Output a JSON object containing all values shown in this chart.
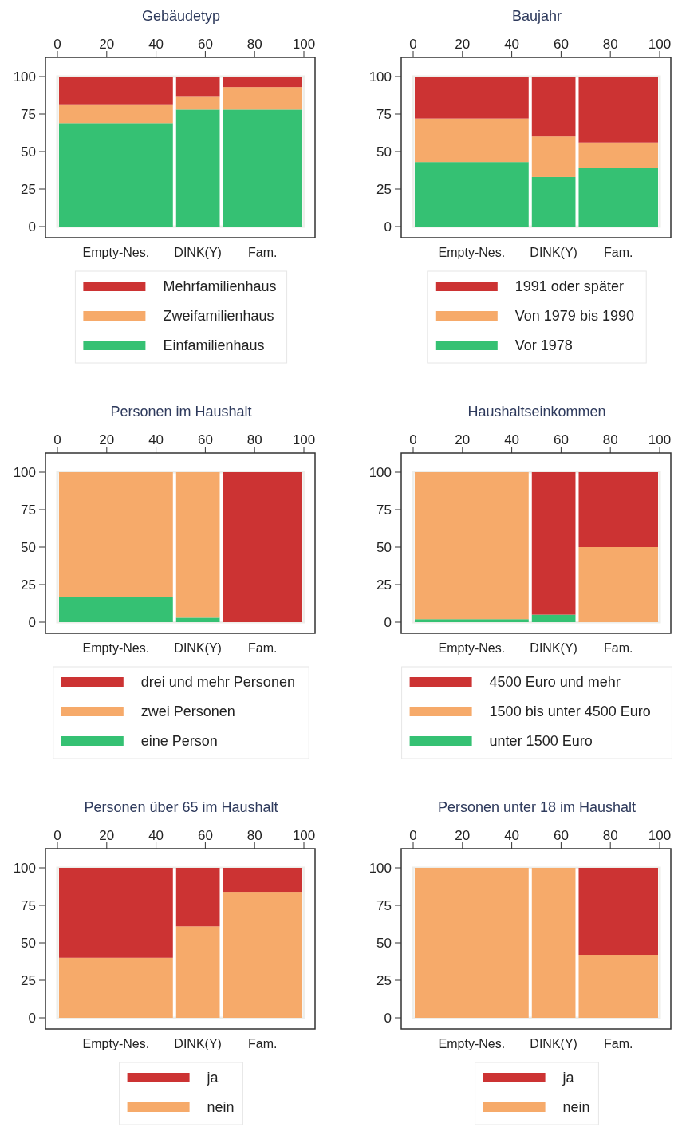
{
  "chart_data": [
    {
      "type": "bar",
      "stacked": true,
      "title": "Gebäudetyp",
      "x": [
        23.75,
        57,
        83.25
      ],
      "xlim": [
        0,
        100
      ],
      "xticks": [
        0,
        20,
        40,
        60,
        80,
        100
      ],
      "ylim": [
        0,
        100
      ],
      "yticks": [
        0,
        25,
        50,
        75,
        100
      ],
      "legend": "bottom",
      "annotations": [
        "Empty-Nes.",
        "DINK(Y)",
        "Fam."
      ],
      "series": [
        {
          "name": "Einfamilienhaus",
          "color": "#35c173",
          "values": [
            69,
            78,
            78
          ]
        },
        {
          "name": "Zweifamilienhaus",
          "color": "#f6aa6a",
          "values": [
            12,
            9,
            15
          ]
        },
        {
          "name": "Mehrfamilienhaus",
          "color": "#cc3333",
          "values": [
            19,
            13,
            7
          ]
        }
      ]
    },
    {
      "type": "bar",
      "stacked": true,
      "title": "Baujahr",
      "x": [
        23.75,
        57,
        83.25
      ],
      "xlim": [
        0,
        100
      ],
      "xticks": [
        0,
        20,
        40,
        60,
        80,
        100
      ],
      "ylim": [
        0,
        100
      ],
      "yticks": [
        0,
        25,
        50,
        75,
        100
      ],
      "legend": "bottom",
      "annotations": [
        "Empty-Nes.",
        "DINK(Y)",
        "Fam."
      ],
      "series": [
        {
          "name": "Vor 1978",
          "color": "#35c173",
          "values": [
            43,
            33,
            39
          ]
        },
        {
          "name": "Von 1979 bis 1990",
          "color": "#f6aa6a",
          "values": [
            29,
            27,
            17
          ]
        },
        {
          "name": "1991 oder später",
          "color": "#cc3333",
          "values": [
            28,
            40,
            44
          ]
        }
      ]
    },
    {
      "type": "bar",
      "stacked": true,
      "title": "Personen im Haushalt",
      "x": [
        23.75,
        57,
        83.25
      ],
      "xlim": [
        0,
        100
      ],
      "xticks": [
        0,
        20,
        40,
        60,
        80,
        100
      ],
      "ylim": [
        0,
        100
      ],
      "yticks": [
        0,
        25,
        50,
        75,
        100
      ],
      "legend": "bottom",
      "annotations": [
        "Empty-Nes.",
        "DINK(Y)",
        "Fam."
      ],
      "series": [
        {
          "name": "eine Person",
          "color": "#35c173",
          "values": [
            17,
            3,
            0
          ]
        },
        {
          "name": "zwei Personen",
          "color": "#f6aa6a",
          "values": [
            83,
            97,
            0
          ]
        },
        {
          "name": "drei und mehr Personen",
          "color": "#cc3333",
          "values": [
            0,
            0,
            100
          ]
        }
      ]
    },
    {
      "type": "bar",
      "stacked": true,
      "title": "Haushaltseinkommen",
      "x": [
        23.75,
        57,
        83.25
      ],
      "xlim": [
        0,
        100
      ],
      "xticks": [
        0,
        20,
        40,
        60,
        80,
        100
      ],
      "ylim": [
        0,
        100
      ],
      "yticks": [
        0,
        25,
        50,
        75,
        100
      ],
      "legend": "bottom",
      "annotations": [
        "Empty-Nes.",
        "DINK(Y)",
        "Fam."
      ],
      "series": [
        {
          "name": "unter 1500 Euro",
          "color": "#35c173",
          "values": [
            2,
            5,
            0
          ]
        },
        {
          "name": "1500 bis unter 4500 Euro",
          "color": "#f6aa6a",
          "values": [
            98,
            0,
            50
          ]
        },
        {
          "name": "4500 Euro und mehr",
          "color": "#cc3333",
          "values": [
            0,
            95,
            50
          ]
        }
      ]
    },
    {
      "type": "bar",
      "stacked": true,
      "title": "Personen über 65 im Haushalt",
      "x": [
        23.75,
        57,
        83.25
      ],
      "xlim": [
        0,
        100
      ],
      "xticks": [
        0,
        20,
        40,
        60,
        80,
        100
      ],
      "ylim": [
        0,
        100
      ],
      "yticks": [
        0,
        25,
        50,
        75,
        100
      ],
      "legend": "bottom",
      "annotations": [
        "Empty-Nes.",
        "DINK(Y)",
        "Fam."
      ],
      "series": [
        {
          "name": "nein",
          "color": "#f6aa6a",
          "values": [
            40,
            61,
            84
          ]
        },
        {
          "name": "ja",
          "color": "#cc3333",
          "values": [
            60,
            39,
            16
          ]
        }
      ]
    },
    {
      "type": "bar",
      "stacked": true,
      "title": "Personen unter 18 im Haushalt",
      "x": [
        23.75,
        57,
        83.25
      ],
      "xlim": [
        0,
        100
      ],
      "xticks": [
        0,
        20,
        40,
        60,
        80,
        100
      ],
      "ylim": [
        0,
        100
      ],
      "yticks": [
        0,
        25,
        50,
        75,
        100
      ],
      "legend": "bottom",
      "annotations": [
        "Empty-Nes.",
        "DINK(Y)",
        "Fam."
      ],
      "series": [
        {
          "name": "nein",
          "color": "#f6aa6a",
          "values": [
            100,
            100,
            42
          ]
        },
        {
          "name": "ja",
          "color": "#cc3333",
          "values": [
            0,
            0,
            58
          ]
        }
      ]
    }
  ]
}
